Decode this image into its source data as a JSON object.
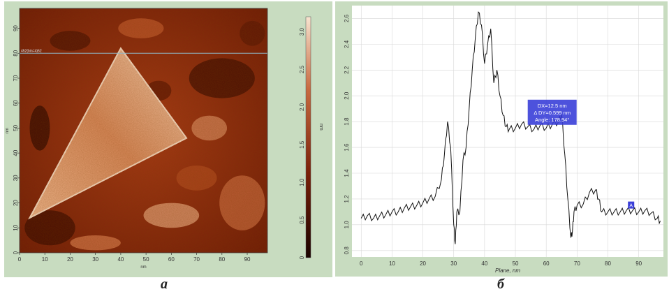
{
  "panels": {
    "a": {
      "label": "a",
      "x_ticks": [
        "0",
        "10",
        "20",
        "30",
        "40",
        "50",
        "60",
        "70",
        "80",
        "90"
      ],
      "y_ticks": [
        "0",
        "10",
        "20",
        "30",
        "40",
        "50",
        "60",
        "70",
        "80",
        "90"
      ],
      "colorbar_ticks": [
        "0",
        "0.5",
        "1.0",
        "1.5",
        "2.0",
        "2.5",
        "3.0"
      ],
      "x_unit": "nm",
      "y_unit": "nm",
      "colorbar_unit": "nm",
      "scan_line_label": "452(bin=4)52"
    },
    "b": {
      "label": "б",
      "xlabel": "Plane, nm",
      "annotation": {
        "lines": [
          "DX=12.5 nm",
          "Δ DY=0.599 nm",
          "Angle: 178.94°"
        ]
      },
      "marker_label": "A"
    }
  },
  "colors": {
    "panel_bg": "#c8dcc0",
    "plot_bg": "#ffffff",
    "afm_dark": "#2a0500",
    "afm_mid": "#9a2e10",
    "afm_light": "#f4d0b0",
    "line": "#111111",
    "annotation_bg": "#3a3fd8",
    "annotation_text": "#ffffff"
  },
  "chart_data": [
    {
      "type": "heatmap",
      "title": "",
      "xlabel": "nm",
      "ylabel": "nm",
      "xlim": [
        0,
        98
      ],
      "ylim": [
        0,
        98
      ],
      "colorbar": {
        "label": "nm",
        "range": [
          0,
          3.2
        ],
        "ticks": [
          0,
          0.5,
          1.0,
          1.5,
          2.0,
          2.5,
          3.0
        ]
      },
      "scan_line_y": 80,
      "features": [
        {
          "name": "triangular flake",
          "vertices": [
            [
              4,
              14
            ],
            [
              40,
              82
            ],
            [
              66,
              46
            ]
          ],
          "height_nm": 2.0
        }
      ]
    },
    {
      "type": "line",
      "title": "",
      "xlabel": "Plane, nm",
      "ylabel": "",
      "xlim": [
        -3,
        98
      ],
      "ylim": [
        0.75,
        2.7
      ],
      "xticks": [
        0,
        10,
        20,
        30,
        40,
        50,
        60,
        70,
        80,
        90
      ],
      "yticks": [
        0.8,
        1.0,
        1.2,
        1.4,
        1.6,
        1.8,
        2.0,
        2.2,
        2.4,
        2.6
      ],
      "grid": true,
      "series": [
        {
          "x": [
            0,
            2,
            4,
            6,
            8,
            10,
            12,
            14,
            16,
            18,
            20,
            22,
            24,
            26,
            27,
            28,
            29,
            30,
            30.5,
            31,
            32,
            33,
            34,
            35,
            36,
            37,
            38,
            39,
            40,
            41,
            42,
            43,
            44,
            45,
            46,
            47,
            48,
            50,
            52,
            54,
            56,
            58,
            60,
            62,
            64,
            65,
            66,
            67,
            68,
            68.5,
            69,
            70,
            72,
            74,
            76,
            77,
            78,
            80,
            82,
            84,
            86,
            88,
            90,
            92,
            94,
            96,
            97
          ],
          "y": [
            1.05,
            1.07,
            1.05,
            1.07,
            1.08,
            1.1,
            1.1,
            1.13,
            1.14,
            1.15,
            1.17,
            1.2,
            1.22,
            1.35,
            1.55,
            1.8,
            1.6,
            1.0,
            0.85,
            1.1,
            1.1,
            1.5,
            1.6,
            1.9,
            2.2,
            2.45,
            2.65,
            2.55,
            2.25,
            2.4,
            2.52,
            2.1,
            2.2,
            2.0,
            1.85,
            1.76,
            1.74,
            1.75,
            1.78,
            1.76,
            1.74,
            1.77,
            1.75,
            1.78,
            1.8,
            1.86,
            1.55,
            1.2,
            0.9,
            0.95,
            1.1,
            1.15,
            1.16,
            1.25,
            1.27,
            1.2,
            1.1,
            1.1,
            1.1,
            1.1,
            1.11,
            1.11,
            1.1,
            1.11,
            1.09,
            1.05,
            1.03
          ]
        }
      ]
    }
  ]
}
